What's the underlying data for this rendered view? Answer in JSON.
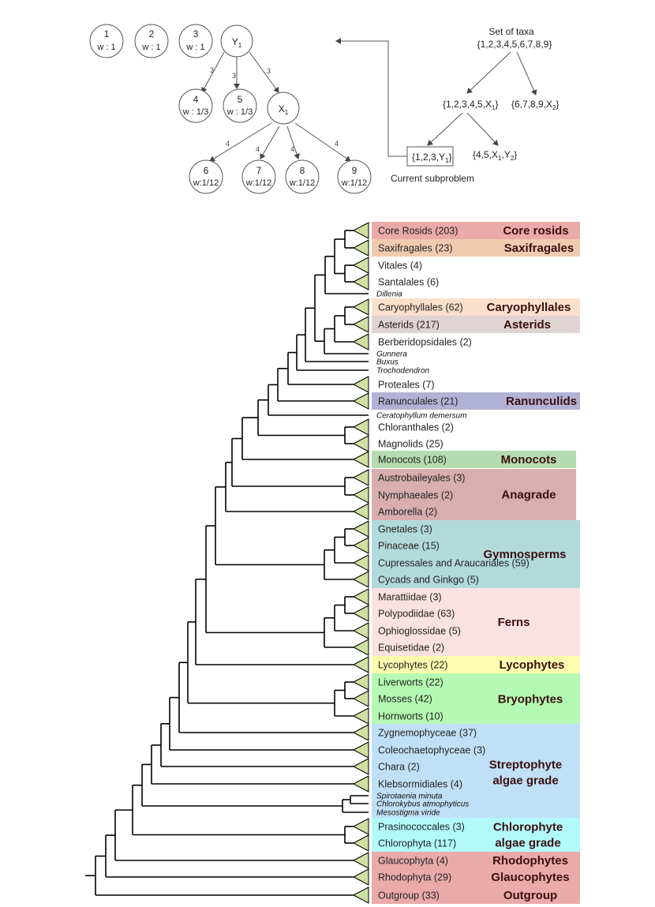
{
  "top": {
    "nodes": [
      {
        "name": "1",
        "w": "w : 1"
      },
      {
        "name": "2",
        "w": "w : 1"
      },
      {
        "name": "3",
        "w": "w : 1"
      },
      {
        "name": "Y",
        "sub": "1"
      },
      {
        "name": "4",
        "w": "w : 1/3"
      },
      {
        "name": "5",
        "w": "w : 1/3"
      },
      {
        "name": "X",
        "sub": "1"
      },
      {
        "name": "6",
        "w": "w:1/12"
      },
      {
        "name": "7",
        "w": "w:1/12"
      },
      {
        "name": "8",
        "w": "w:1/12"
      },
      {
        "name": "9",
        "w": "w:1/12"
      }
    ],
    "edge_weights": {
      "y_children": "3",
      "x_children": "4"
    },
    "set_title": "Set of taxa",
    "set_all": "{1,2,3,4,5,6,7,8,9}",
    "set_left": "{1,2,3,4,5,X",
    "set_left_sub": "1",
    "set_right": "{6,7,8,9,X",
    "set_right_sub": "2",
    "sub_a": "{1,2,3,Y",
    "sub_a_sub": "1",
    "sub_b": "{4,5,X",
    "sub_b_sub1": "1",
    "sub_b_sub2": "2",
    "sub_b_mid": ",Y",
    "close": "}",
    "current_label": "Current subproblem"
  },
  "tree": {
    "leaves": [
      {
        "text": "Core Rosids (203)",
        "type": "clade"
      },
      {
        "text": "Saxifragales (23)",
        "type": "clade"
      },
      {
        "text": "Vitales (4)",
        "type": "clade"
      },
      {
        "text": "Santalales (6)",
        "type": "clade"
      },
      {
        "text": "Dillenia",
        "type": "single"
      },
      {
        "text": "Caryophyllales (62)",
        "type": "clade"
      },
      {
        "text": "Asterids (217)",
        "type": "clade"
      },
      {
        "text": "Berberidopsidales (2)",
        "type": "clade"
      },
      {
        "text": "Gunnera",
        "type": "single"
      },
      {
        "text": "Buxus",
        "type": "single"
      },
      {
        "text": "Trochodendron",
        "type": "single"
      },
      {
        "text": "Proteales (7)",
        "type": "clade"
      },
      {
        "text": "Ranunculales (21)",
        "type": "clade"
      },
      {
        "text": "Ceratophyllum demersum",
        "type": "single"
      },
      {
        "text": "Chloranthales (2)",
        "type": "clade"
      },
      {
        "text": "Magnolids (25)",
        "type": "clade"
      },
      {
        "text": "Monocots (108)",
        "type": "clade"
      },
      {
        "text": "Austrobaileyales (3)",
        "type": "clade"
      },
      {
        "text": "Nymphaeales (2)",
        "type": "clade"
      },
      {
        "text": "Amborella (2)",
        "type": "clade"
      },
      {
        "text": "Gnetales (3)",
        "type": "clade"
      },
      {
        "text": "Pinaceae (15)",
        "type": "clade"
      },
      {
        "text": "Cupressales and Araucariales (59)",
        "type": "clade"
      },
      {
        "text": "Cycads and Ginkgo (5)",
        "type": "clade"
      },
      {
        "text": "Marattiidae (3)",
        "type": "clade"
      },
      {
        "text": "Polypodiidae (63)",
        "type": "clade"
      },
      {
        "text": "Ophioglossidae (5)",
        "type": "clade"
      },
      {
        "text": "Equisetidae (2)",
        "type": "clade"
      },
      {
        "text": "Lycophytes (22)",
        "type": "clade"
      },
      {
        "text": "Liverworts (22)",
        "type": "clade"
      },
      {
        "text": "Mosses (42)",
        "type": "clade"
      },
      {
        "text": "Hornworts (10)",
        "type": "clade"
      },
      {
        "text": "Zygnemophyceae (37)",
        "type": "clade"
      },
      {
        "text": "Coleochaetophyceae (3)",
        "type": "clade"
      },
      {
        "text": "Chara (2)",
        "type": "clade"
      },
      {
        "text": "Klebsormidiales (4)",
        "type": "clade"
      },
      {
        "text": "Spirotaenia minuta",
        "type": "single"
      },
      {
        "text": "Chlorokybus atmophyticus",
        "type": "single"
      },
      {
        "text": "Mesostigma viride",
        "type": "single"
      },
      {
        "text": "Prasinococcales (3)",
        "type": "clade"
      },
      {
        "text": "Chlorophyta (117)",
        "type": "clade"
      },
      {
        "text": "Glaucophyta (4)",
        "type": "clade"
      },
      {
        "text": "Rhodophyta (29)",
        "type": "clade"
      },
      {
        "text": "Outgroup (33)",
        "type": "clade"
      }
    ],
    "groups": [
      {
        "lines": [
          "Core rosids"
        ],
        "color": "#eaaaaa"
      },
      {
        "lines": [
          "Saxifragales"
        ],
        "color": "#f1cbb0"
      },
      {
        "lines": [
          "Caryophyllales"
        ],
        "color": "#fbe0cc"
      },
      {
        "lines": [
          "Asterids"
        ],
        "color": "#e0d3d3"
      },
      {
        "lines": [
          "Ranunculids"
        ],
        "color": "#b2b2d6"
      },
      {
        "lines": [
          "Monocots"
        ],
        "color": "#b5dcb0"
      },
      {
        "lines": [
          "Anagrade"
        ],
        "color": "#d8aeae"
      },
      {
        "lines": [
          "Gymnosperms"
        ],
        "color": "#b2dada"
      },
      {
        "lines": [
          "Ferns"
        ],
        "color": "#fbe2e2"
      },
      {
        "lines": [
          "Lycophytes"
        ],
        "color": "#fcfcae"
      },
      {
        "lines": [
          "Bryophytes"
        ],
        "color": "#b4fab2"
      },
      {
        "lines": [
          "Streptophyte",
          "algae grade"
        ],
        "color": "#c0e0f8"
      },
      {
        "lines": [
          "Chlorophyte",
          "algae grade"
        ],
        "color": "#b2fafa"
      },
      {
        "lines": [
          "Rhodophytes",
          "Glaucophytes",
          "Outgroup"
        ],
        "color": "#eaaaaa"
      }
    ]
  }
}
